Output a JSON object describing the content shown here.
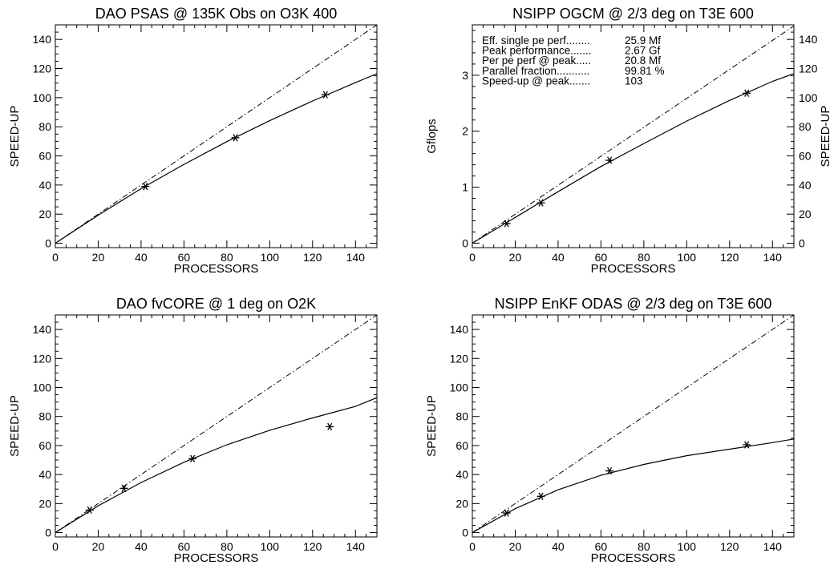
{
  "chart_data": [
    {
      "type": "scatter",
      "title": "DAO PSAS @ 135K Obs on O3K 400",
      "xlabel": "PROCESSORS",
      "ylabel": "SPEED-UP",
      "xlim": [
        0,
        150
      ],
      "ylim": [
        -3,
        150
      ],
      "xticks": [
        0,
        20,
        40,
        60,
        80,
        100,
        120,
        140
      ],
      "yticks": [
        0,
        20,
        40,
        60,
        80,
        100,
        120,
        140
      ],
      "points": {
        "x": [
          42,
          84,
          126
        ],
        "y": [
          39,
          72.5,
          102
        ]
      },
      "ideal_line": {
        "x": [
          0,
          150
        ],
        "y": [
          0,
          150
        ]
      },
      "fit_curve": {
        "x": [
          0,
          20,
          40,
          60,
          80,
          100,
          120,
          140,
          150
        ],
        "y": [
          0,
          19.3,
          37.5,
          54.2,
          69.8,
          84.2,
          97.7,
          110.3,
          116.5
        ]
      },
      "grid": false,
      "legend": "none"
    },
    {
      "type": "scatter",
      "title": "NSIPP OGCM @ 2/3 deg on T3E 600",
      "xlabel": "PROCESSORS",
      "ylabel": "Gflops",
      "ylabel_right": "SPEED-UP",
      "xlim": [
        0,
        150
      ],
      "ylim": [
        -0.08,
        3.9
      ],
      "right_ylim": [
        -3,
        150
      ],
      "xticks": [
        0,
        20,
        40,
        60,
        80,
        100,
        120,
        140
      ],
      "yticks": [
        0,
        1,
        2,
        3
      ],
      "right_yticks": [
        0,
        20,
        40,
        60,
        80,
        100,
        120,
        140
      ],
      "points": {
        "x": [
          16,
          32,
          64,
          128
        ],
        "y": [
          0.35,
          0.72,
          1.48,
          2.68
        ]
      },
      "ideal_line": {
        "x": [
          0,
          150
        ],
        "y": [
          0,
          3.88
        ]
      },
      "fit_curve": {
        "x": [
          0,
          20,
          40,
          60,
          80,
          100,
          120,
          140,
          150
        ],
        "y": [
          0,
          0.46,
          0.92,
          1.37,
          1.78,
          2.18,
          2.55,
          2.89,
          3.03
        ]
      },
      "annotations": [
        {
          "label": "Eff. single pe perf........",
          "value": "25.9 Mf"
        },
        {
          "label": "Peak performance.......",
          "value": "2.67 Gf"
        },
        {
          "label": "Per pe perf @ peak.....",
          "value": "20.8 Mf"
        },
        {
          "label": "Parallel fraction...........",
          "value": "99.81 %"
        },
        {
          "label": "Speed-up @ peak.......",
          "value": "103"
        }
      ],
      "grid": false,
      "legend": "none"
    },
    {
      "type": "scatter",
      "title": "DAO fvCORE @ 1 deg on O2K",
      "xlabel": "PROCESSORS",
      "ylabel": "SPEED-UP",
      "xlim": [
        0,
        150
      ],
      "ylim": [
        -3,
        150
      ],
      "xticks": [
        0,
        20,
        40,
        60,
        80,
        100,
        120,
        140
      ],
      "yticks": [
        0,
        20,
        40,
        60,
        80,
        100,
        120,
        140
      ],
      "points": {
        "x": [
          16,
          32,
          64,
          128
        ],
        "y": [
          15.5,
          30.5,
          51,
          73
        ]
      },
      "ideal_line": {
        "x": [
          0,
          150
        ],
        "y": [
          0,
          150
        ]
      },
      "fit_curve": {
        "x": [
          0,
          20,
          40,
          60,
          80,
          100,
          120,
          140,
          150
        ],
        "y": [
          0,
          18.5,
          34.5,
          48.5,
          60.5,
          70.5,
          79,
          87,
          93
        ]
      },
      "grid": false,
      "legend": "none"
    },
    {
      "type": "scatter",
      "title": "NSIPP EnKF ODAS @ 2/3 deg on T3E 600",
      "xlabel": "PROCESSORS",
      "ylabel": "SPEED-UP",
      "xlim": [
        0,
        150
      ],
      "ylim": [
        -3,
        150
      ],
      "xticks": [
        0,
        20,
        40,
        60,
        80,
        100,
        120,
        140
      ],
      "yticks": [
        0,
        20,
        40,
        60,
        80,
        100,
        120,
        140
      ],
      "points": {
        "x": [
          16,
          32,
          64,
          128
        ],
        "y": [
          13.5,
          25,
          42.5,
          60.5
        ]
      },
      "ideal_line": {
        "x": [
          0,
          150
        ],
        "y": [
          0,
          150
        ]
      },
      "fit_curve": {
        "x": [
          0,
          20,
          40,
          60,
          80,
          100,
          120,
          140,
          150
        ],
        "y": [
          0,
          16.5,
          29.5,
          39.5,
          47,
          53,
          57.5,
          62,
          64.5
        ]
      },
      "grid": false,
      "legend": "none"
    }
  ]
}
